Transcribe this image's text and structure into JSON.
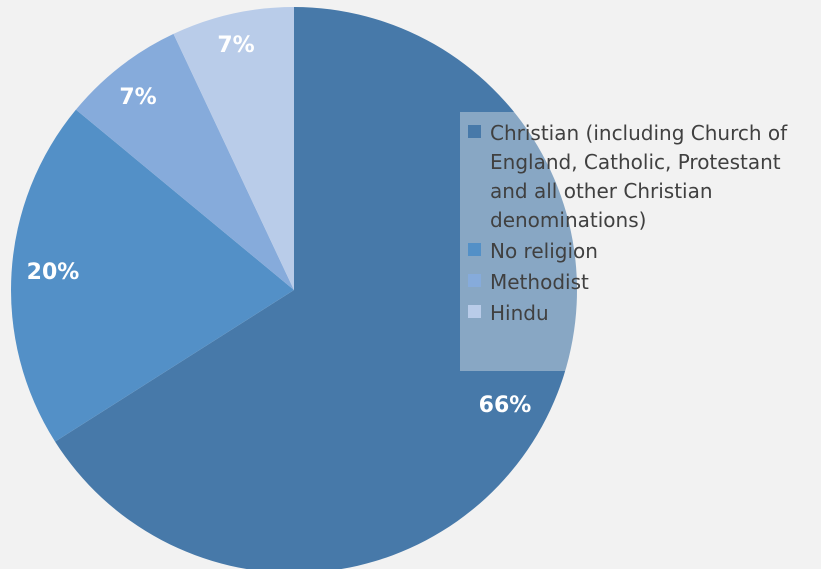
{
  "chart_data": {
    "type": "pie",
    "categories": [
      "Christian (including Church of England, Catholic, Protestant and all other Christian denominations)",
      "No religion",
      "Methodist",
      "Hindu"
    ],
    "values": [
      66,
      20,
      7,
      7
    ],
    "value_labels": [
      "66%",
      "20%",
      "7%",
      "7%"
    ],
    "colors": [
      "#4779a9",
      "#5390c7",
      "#86abdb",
      "#b9cce9"
    ],
    "start": "12 o'clock, clockwise",
    "legend_position": "right",
    "title": ""
  }
}
